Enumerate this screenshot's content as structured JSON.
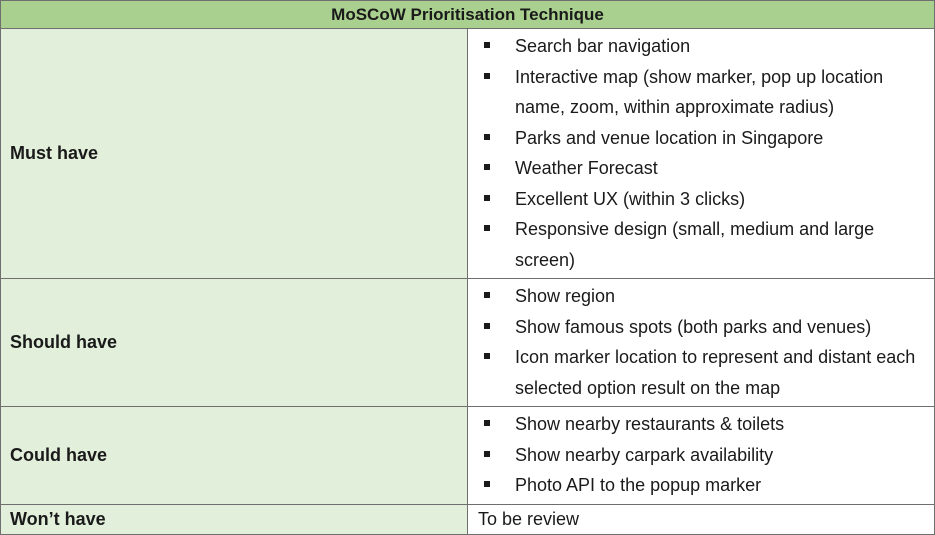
{
  "title": "MoSCoW Prioritisation Technique",
  "rows": [
    {
      "category": "Must have",
      "items": [
        "Search bar navigation",
        "Interactive map (show marker, pop up location name, zoom, within approximate radius)",
        "Parks and venue location in Singapore",
        "Weather Forecast",
        "Excellent UX (within 3 clicks)",
        "Responsive design (small, medium and large screen)"
      ]
    },
    {
      "category": "Should have",
      "items": [
        "Show region",
        "Show famous spots (both parks and venues)",
        "Icon marker location to represent and distant each selected option result on the map"
      ]
    },
    {
      "category": "Could have",
      "items": [
        "Show nearby restaurants & toilets",
        "Show nearby carpark availability",
        "Photo API to the popup marker"
      ]
    },
    {
      "category": "Won’t have",
      "text": "To be review"
    }
  ]
}
